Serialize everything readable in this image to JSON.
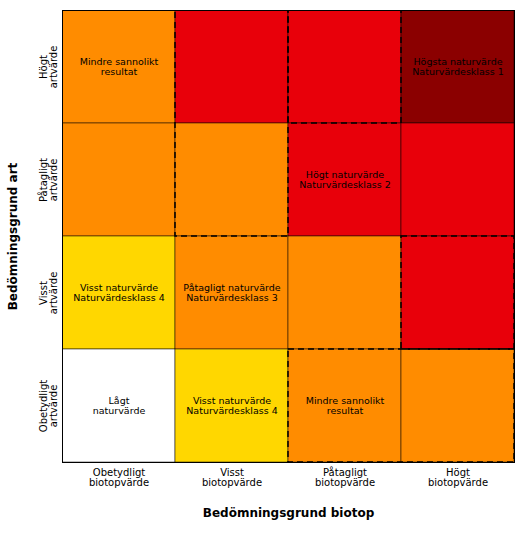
{
  "chart_data": {
    "type": "heatmap",
    "xlabel": "Bedömningsgrund biotop",
    "ylabel": "Bedömningsgrund art",
    "x": [
      "Obetydligt\nbiotopvärde",
      "Visst\nbiotopvärde",
      "Påtagligt\nbiotopvärde",
      "Högt\nbiotopvärde"
    ],
    "y": [
      "Obetydligt\nartvärde",
      "Visst\nartvärde",
      "Påtagligt\nartvärde",
      "Högt\nartvärde"
    ],
    "cells": [
      {
        "row": 3,
        "col": 0,
        "color": "#FF8C00",
        "label": "Mindre sannolikt\nresultat",
        "label_color": "#000000"
      },
      {
        "row": 3,
        "col": 1,
        "color": "#E8000A"
      },
      {
        "row": 3,
        "col": 2,
        "color": "#E8000A"
      },
      {
        "row": 3,
        "col": 3,
        "color": "#8B0000",
        "label": "Högsta naturvärde\nNaturvärdesklass 1",
        "label_color": "#000000"
      },
      {
        "row": 2,
        "col": 0,
        "color": "#FF8C00"
      },
      {
        "row": 2,
        "col": 1,
        "color": "#FF8C00"
      },
      {
        "row": 2,
        "col": 2,
        "color": "#E8000A",
        "label": "Högt naturvärde\nNaturvärdesklass 2",
        "label_color": "#000000"
      },
      {
        "row": 2,
        "col": 3,
        "color": "#E8000A"
      },
      {
        "row": 1,
        "col": 0,
        "color": "#FFD700",
        "label": "Visst naturvärde\nNaturvärdesklass 4",
        "label_color": "#000000"
      },
      {
        "row": 1,
        "col": 1,
        "color": "#FF8C00",
        "label": "Påtagligt naturvärde\nNaturvärdesklass 3",
        "label_color": "#000000"
      },
      {
        "row": 1,
        "col": 2,
        "color": "#FF8C00"
      },
      {
        "row": 1,
        "col": 3,
        "color": "#E8000A"
      },
      {
        "row": 0,
        "col": 0,
        "color": "#FFFFFF",
        "label": "Lågt\nnaturvärde",
        "label_color": "#000000"
      },
      {
        "row": 0,
        "col": 1,
        "color": "#FFD700",
        "label": "Visst naturvärde\nNaturvärdesklass 4",
        "label_color": "#000000"
      },
      {
        "row": 0,
        "col": 2,
        "color": "#FF8C00",
        "label": "Mindre sannolikt\nresultat",
        "label_color": "#000000"
      },
      {
        "row": 0,
        "col": 3,
        "color": "#FF8C00"
      }
    ],
    "dashed_boxes": [
      {
        "x0": 1,
        "y0": 2,
        "x1": 2,
        "y1": 4
      },
      {
        "x0": 2,
        "y0": 3,
        "x1": 3,
        "y1": 4
      },
      {
        "x0": 2,
        "y0": 0,
        "x1": 4,
        "y1": 1
      },
      {
        "x0": 3,
        "y0": 1,
        "x1": 4,
        "y1": 2
      }
    ]
  }
}
